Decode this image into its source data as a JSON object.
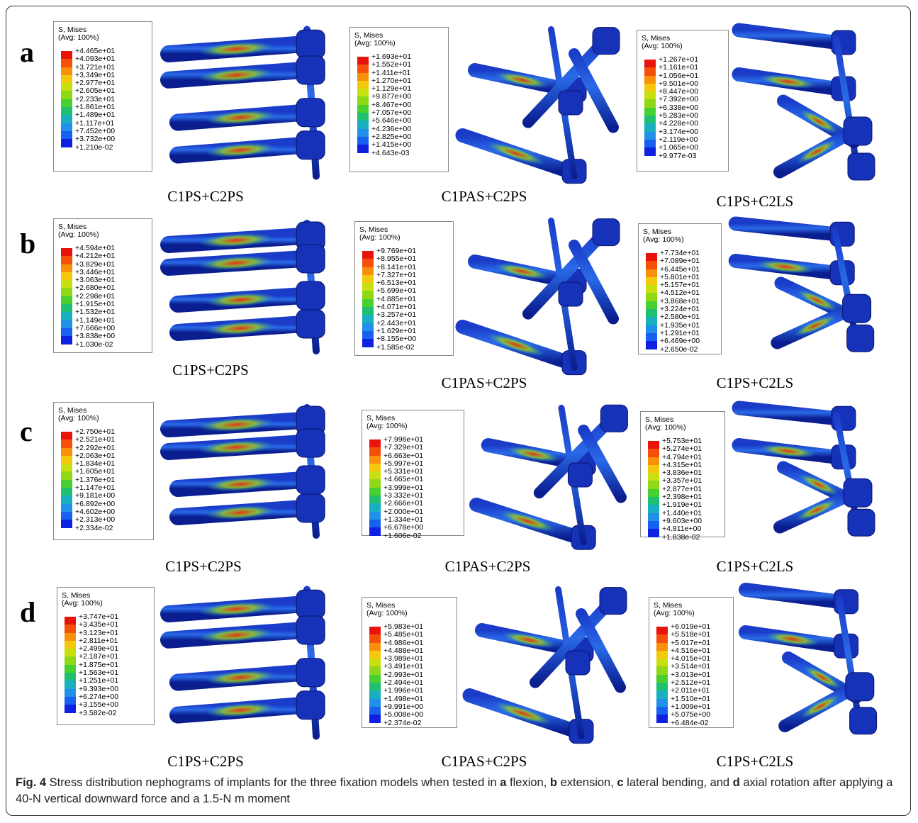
{
  "rows": [
    {
      "letter": "a",
      "panels": [
        {
          "legend_title": "S, Mises",
          "legend_subtitle": "(Avg: 100%)",
          "values": [
            "+4.465e+01",
            "+4.093e+01",
            "+3.721e+01",
            "+3.349e+01",
            "+2.977e+01",
            "+2.605e+01",
            "+2.233e+01",
            "+1.861e+01",
            "+1.489e+01",
            "+1.117e+01",
            "+7.452e+00",
            "+3.732e+00",
            "+1.210e-02"
          ],
          "label": "C1PS+C2PS"
        },
        {
          "legend_title": "S, Mises",
          "legend_subtitle": "(Avg: 100%)",
          "values": [
            "+1.693e+01",
            "+1.552e+01",
            "+1.411e+01",
            "+1.270e+01",
            "+1.129e+01",
            "+9.877e+00",
            "+8.467e+00",
            "+7.057e+00",
            "+5.646e+00",
            "+4.236e+00",
            "+2.825e+00",
            "+1.415e+00",
            "+4.643e-03"
          ],
          "label": "C1PAS+C2PS"
        },
        {
          "legend_title": "S, Mises",
          "legend_subtitle": "(Avg: 100%)",
          "values": [
            "+1.267e+01",
            "+1.161e+01",
            "+1.056e+01",
            "+9.501e+00",
            "+8.447e+00",
            "+7.392e+00",
            "+6.338e+00",
            "+5.283e+00",
            "+4.228e+00",
            "+3.174e+00",
            "+2.119e+00",
            "+1.065e+00",
            "+9.977e-03"
          ],
          "label": "C1PS+C2LS"
        }
      ]
    },
    {
      "letter": "b",
      "panels": [
        {
          "legend_title": "S, Mises",
          "legend_subtitle": "(Avg: 100%)",
          "values": [
            "+4.594e+01",
            "+4.212e+01",
            "+3.829e+01",
            "+3.446e+01",
            "+3.063e+01",
            "+2.680e+01",
            "+2.298e+01",
            "+1.915e+01",
            "+1.532e+01",
            "+1.149e+01",
            "+7.666e+00",
            "+3.838e+00",
            "+1.030e-02"
          ],
          "label": "C1PS+C2PS"
        },
        {
          "legend_title": "S, Mises",
          "legend_subtitle": "(Avg: 100%)",
          "values": [
            "+9.769e+01",
            "+8.955e+01",
            "+8.141e+01",
            "+7.327e+01",
            "+6.513e+01",
            "+5.699e+01",
            "+4.885e+01",
            "+4.071e+01",
            "+3.257e+01",
            "+2.443e+01",
            "+1.629e+01",
            "+8.155e+00",
            "+1.585e-02"
          ],
          "label": "C1PAS+C2PS"
        },
        {
          "legend_title": "S, Mises",
          "legend_subtitle": "(Avg: 100%)",
          "values": [
            "+7.734e+01",
            "+7.089e+01",
            "+6.445e+01",
            "+5.801e+01",
            "+5.157e+01",
            "+4.512e+01",
            "+3.868e+01",
            "+3.224e+01",
            "+2.580e+01",
            "+1.935e+01",
            "+1.291e+01",
            "+6.469e+00",
            "+2.650e-02"
          ],
          "label": "C1PS+C2LS"
        }
      ]
    },
    {
      "letter": "c",
      "panels": [
        {
          "legend_title": "S, Mises",
          "legend_subtitle": "(Avg: 100%)",
          "values": [
            "+2.750e+01",
            "+2.521e+01",
            "+2.292e+01",
            "+2.063e+01",
            "+1.834e+01",
            "+1.605e+01",
            "+1.376e+01",
            "+1.147e+01",
            "+9.181e+00",
            "+6.892e+00",
            "+4.602e+00",
            "+2.313e+00",
            "+2.334e-02"
          ],
          "label": "C1PS+C2PS"
        },
        {
          "legend_title": "S, Mises",
          "legend_subtitle": "(Avg: 100%)",
          "values": [
            "+7.996e+01",
            "+7.329e+01",
            "+6.663e+01",
            "+5.997e+01",
            "+5.331e+01",
            "+4.665e+01",
            "+3.999e+01",
            "+3.332e+01",
            "+2.666e+01",
            "+2.000e+01",
            "+1.334e+01",
            "+6.678e+00",
            "+1.606e-02"
          ],
          "label": "C1PAS+C2PS"
        },
        {
          "legend_title": "S, Mises",
          "legend_subtitle": "(Avg: 100%)",
          "values": [
            "+5.753e+01",
            "+5.274e+01",
            "+4.794e+01",
            "+4.315e+01",
            "+3.836e+01",
            "+3.357e+01",
            "+2.877e+01",
            "+2.398e+01",
            "+1.919e+01",
            "+1.440e+01",
            "+9.603e+00",
            "+4.811e+00",
            "+1.838e-02"
          ],
          "label": "C1PS+C2LS"
        }
      ]
    },
    {
      "letter": "d",
      "panels": [
        {
          "legend_title": "S, Mises",
          "legend_subtitle": "(Avg: 100%)",
          "values": [
            "+3.747e+01",
            "+3.435e+01",
            "+3.123e+01",
            "+2.811e+01",
            "+2.499e+01",
            "+2.187e+01",
            "+1.875e+01",
            "+1.563e+01",
            "+1.251e+01",
            "+9.393e+00",
            "+6.274e+00",
            "+3.155e+00",
            "+3.582e-02"
          ],
          "label": "C1PS+C2PS"
        },
        {
          "legend_title": "S, Mises",
          "legend_subtitle": "(Avg: 100%)",
          "values": [
            "+5.983e+01",
            "+5.485e+01",
            "+4.986e+01",
            "+4.488e+01",
            "+3.989e+01",
            "+3.491e+01",
            "+2.993e+01",
            "+2.494e+01",
            "+1.996e+01",
            "+1.498e+01",
            "+9.991e+00",
            "+5.008e+00",
            "+2.374e-02"
          ],
          "label": "C1PAS+C2PS"
        },
        {
          "legend_title": "S, Mises",
          "legend_subtitle": "(Avg: 100%)",
          "values": [
            "+6.019e+01",
            "+5.518e+01",
            "+5.017e+01",
            "+4.516e+01",
            "+4.015e+01",
            "+3.514e+01",
            "+3.013e+01",
            "+2.512e+01",
            "+2.011e+01",
            "+1.510e+01",
            "+1.009e+01",
            "+5.075e+00",
            "+6.484e-02"
          ],
          "label": "C1PS+C2LS"
        }
      ]
    }
  ],
  "caption": [
    {
      "text": "Fig. 4",
      "bold": true
    },
    {
      "text": " Stress distribution nephograms of implants for the three fixation models when tested in ",
      "bold": false
    },
    {
      "text": "a",
      "bold": true
    },
    {
      "text": " flexion, ",
      "bold": false
    },
    {
      "text": "b",
      "bold": true
    },
    {
      "text": " extension, ",
      "bold": false
    },
    {
      "text": "c",
      "bold": true
    },
    {
      "text": " lateral bending, and ",
      "bold": false
    },
    {
      "text": "d",
      "bold": true
    },
    {
      "text": " axial rotation after applying a 40-N vertical downward force and a 1.5-N m moment",
      "bold": false
    }
  ]
}
